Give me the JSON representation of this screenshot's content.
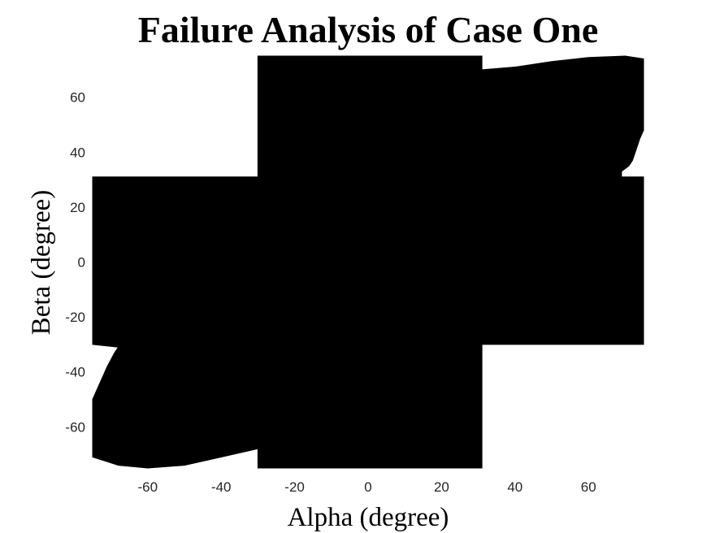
{
  "chart_data": {
    "type": "heatmap",
    "title": "Failure Analysis of Case One",
    "xlabel": "Alpha (degree)",
    "ylabel": "Beta (degree)",
    "xlim": [
      -75,
      75
    ],
    "ylim": [
      -75,
      75
    ],
    "xticks": [
      -60,
      -40,
      -20,
      0,
      20,
      40,
      60
    ],
    "yticks": [
      60,
      40,
      20,
      0,
      -20,
      -40,
      -60
    ],
    "grid": false,
    "fill_color": "#000000",
    "background_color": "#ffffff",
    "failure_region": [
      [
        -30,
        75
      ],
      [
        31,
        75
      ],
      [
        31,
        70
      ],
      [
        40,
        71
      ],
      [
        50,
        73
      ],
      [
        60,
        74.5
      ],
      [
        70,
        75
      ],
      [
        75,
        74
      ],
      [
        75,
        48
      ],
      [
        74,
        45
      ],
      [
        73,
        41
      ],
      [
        72,
        37
      ],
      [
        71,
        35
      ],
      [
        69,
        33
      ],
      [
        69,
        31
      ],
      [
        75,
        31
      ],
      [
        75,
        -30
      ],
      [
        31,
        -30
      ],
      [
        31,
        -75
      ],
      [
        -30,
        -75
      ],
      [
        -30,
        -68
      ],
      [
        -40,
        -71
      ],
      [
        -50,
        -74
      ],
      [
        -60,
        -75
      ],
      [
        -68,
        -74
      ],
      [
        -75,
        -71
      ],
      [
        -75,
        -50
      ],
      [
        -73,
        -44
      ],
      [
        -71,
        -38
      ],
      [
        -69,
        -33
      ],
      [
        -68,
        -31
      ],
      [
        -75,
        -30
      ],
      [
        -75,
        31
      ],
      [
        -30,
        31
      ]
    ]
  }
}
